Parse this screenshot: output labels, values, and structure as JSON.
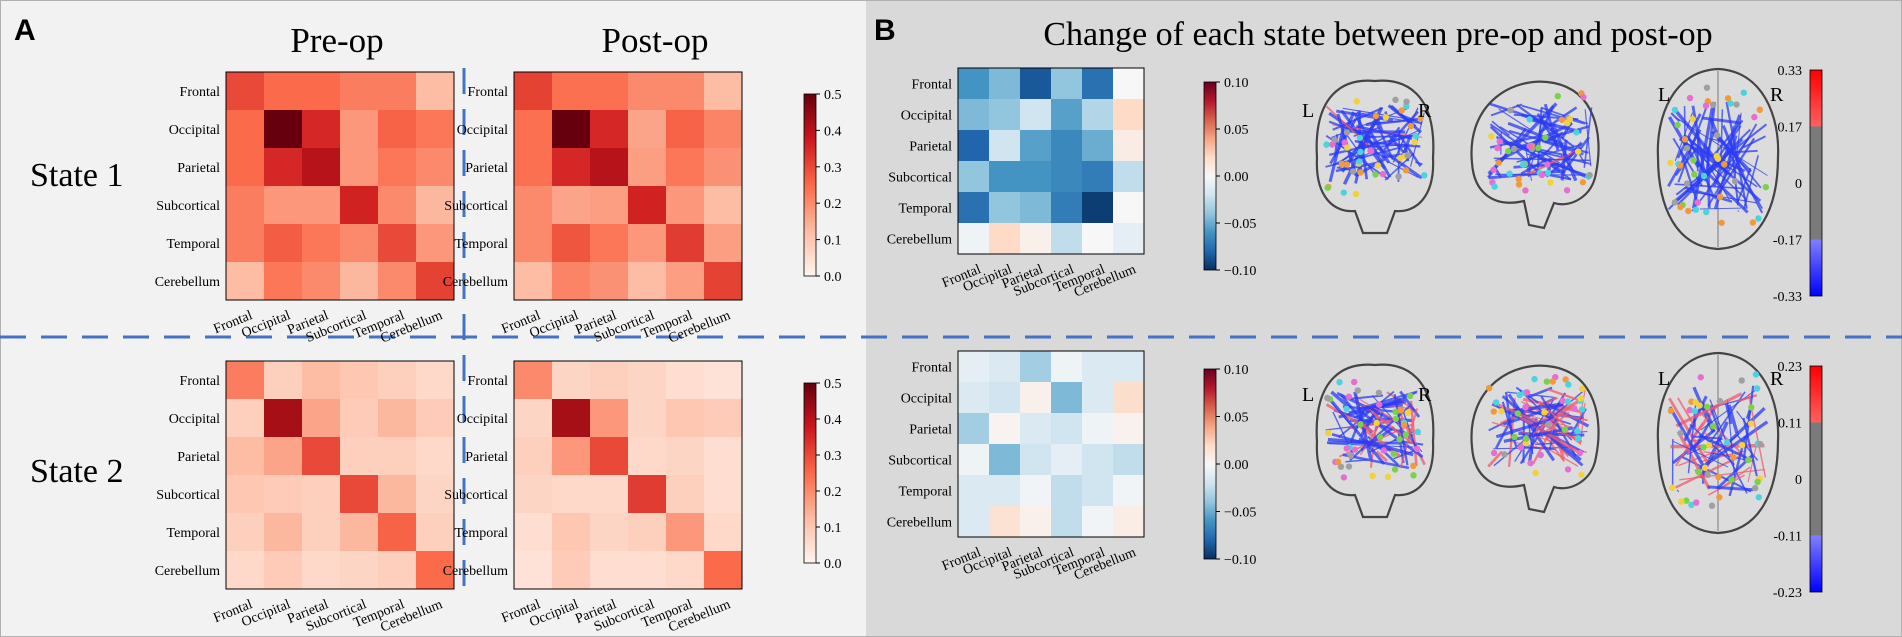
{
  "panels": {
    "a_letter": "A",
    "b_letter": "B",
    "a_col_titles": [
      "Pre-op",
      "Post-op"
    ],
    "a_row_titles": [
      "State 1",
      "State 2"
    ],
    "b_title": "Change of each state between pre-op and post-op"
  },
  "regions": [
    "Frontal",
    "Occipital",
    "Parietal",
    "Subcortical",
    "Temporal",
    "Cerebellum"
  ],
  "brain_labels": {
    "left": "L",
    "right": "R"
  },
  "colors": {
    "panel_a_bg": "#f2f2f2",
    "panel_b_bg": "#d9d9d9",
    "divider": "#4472c4",
    "reds": [
      "#fff5f0",
      "#fcbba1",
      "#fb6a4a",
      "#cb181d",
      "#67000d"
    ],
    "diverging": [
      "#053061",
      "#2166ac",
      "#4393c3",
      "#92c5de",
      "#d1e5f0",
      "#f7f7f7",
      "#fddbc7",
      "#f4a582",
      "#d6604d",
      "#b2182b",
      "#67001f"
    ],
    "edge_neg": "#2b3cf5",
    "edge_pos": "#f05a6e",
    "edge_mid": "#808080"
  },
  "chart_data": [
    {
      "id": "state1-pre",
      "type": "heatmap",
      "title": "Pre-op",
      "row_title": "State 1",
      "vmin": 0,
      "vmax": 0.5,
      "values": [
        [
          0.3,
          0.25,
          0.25,
          0.22,
          0.22,
          0.12
        ],
        [
          0.25,
          0.5,
          0.35,
          0.18,
          0.26,
          0.23
        ],
        [
          0.25,
          0.35,
          0.4,
          0.18,
          0.23,
          0.2
        ],
        [
          0.22,
          0.18,
          0.18,
          0.36,
          0.2,
          0.13
        ],
        [
          0.22,
          0.27,
          0.23,
          0.2,
          0.3,
          0.18
        ],
        [
          0.12,
          0.23,
          0.2,
          0.13,
          0.2,
          0.31
        ]
      ]
    },
    {
      "id": "state1-post",
      "type": "heatmap",
      "title": "Post-op",
      "row_title": "State 1",
      "vmin": 0,
      "vmax": 0.5,
      "values": [
        [
          0.31,
          0.24,
          0.24,
          0.2,
          0.2,
          0.12
        ],
        [
          0.24,
          0.5,
          0.35,
          0.16,
          0.26,
          0.21
        ],
        [
          0.24,
          0.35,
          0.4,
          0.17,
          0.23,
          0.19
        ],
        [
          0.2,
          0.16,
          0.17,
          0.36,
          0.18,
          0.12
        ],
        [
          0.2,
          0.28,
          0.23,
          0.18,
          0.32,
          0.17
        ],
        [
          0.12,
          0.21,
          0.19,
          0.12,
          0.17,
          0.31
        ]
      ],
      "colorbar": {
        "ticks": [
          "0.5",
          "0.4",
          "0.3",
          "0.2",
          "0.1",
          "0.0"
        ]
      }
    },
    {
      "id": "state2-pre",
      "type": "heatmap",
      "title": "Pre-op",
      "row_title": "State 2",
      "vmin": 0,
      "vmax": 0.5,
      "values": [
        [
          0.22,
          0.08,
          0.12,
          0.1,
          0.08,
          0.06
        ],
        [
          0.08,
          0.42,
          0.16,
          0.09,
          0.13,
          0.09
        ],
        [
          0.12,
          0.16,
          0.3,
          0.08,
          0.08,
          0.06
        ],
        [
          0.1,
          0.09,
          0.08,
          0.3,
          0.13,
          0.07
        ],
        [
          0.08,
          0.13,
          0.08,
          0.13,
          0.26,
          0.08
        ],
        [
          0.06,
          0.09,
          0.06,
          0.07,
          0.08,
          0.25
        ]
      ]
    },
    {
      "id": "state2-post",
      "type": "heatmap",
      "title": "Post-op",
      "row_title": "State 2",
      "vmin": 0,
      "vmax": 0.5,
      "values": [
        [
          0.2,
          0.07,
          0.08,
          0.07,
          0.05,
          0.04
        ],
        [
          0.07,
          0.42,
          0.18,
          0.07,
          0.1,
          0.09
        ],
        [
          0.08,
          0.18,
          0.3,
          0.06,
          0.07,
          0.05
        ],
        [
          0.07,
          0.06,
          0.06,
          0.32,
          0.08,
          0.05
        ],
        [
          0.05,
          0.1,
          0.07,
          0.08,
          0.18,
          0.06
        ],
        [
          0.04,
          0.09,
          0.05,
          0.05,
          0.06,
          0.25
        ]
      ],
      "colorbar": {
        "ticks": [
          "0.5",
          "0.4",
          "0.3",
          "0.2",
          "0.1",
          "0.0"
        ]
      }
    },
    {
      "id": "state1-diff",
      "type": "heatmap",
      "title": "Change of each state between pre-op and post-op",
      "row_title": "State 1",
      "vmin": -0.1,
      "vmax": 0.1,
      "values": [
        [
          -0.06,
          -0.045,
          -0.085,
          -0.04,
          -0.075,
          0.0
        ],
        [
          -0.045,
          -0.04,
          -0.02,
          -0.055,
          -0.03,
          0.02
        ],
        [
          -0.08,
          -0.02,
          -0.055,
          -0.065,
          -0.05,
          0.008
        ],
        [
          -0.04,
          -0.06,
          -0.06,
          -0.065,
          -0.07,
          -0.025
        ],
        [
          -0.075,
          -0.04,
          -0.045,
          -0.07,
          -0.095,
          0.0
        ],
        [
          -0.005,
          0.02,
          0.005,
          -0.025,
          0.0,
          -0.01
        ]
      ],
      "colorbar": {
        "ticks": [
          "0.10",
          "0.05",
          "0.00",
          "−0.05",
          "−0.10"
        ]
      }
    },
    {
      "id": "state2-diff",
      "type": "heatmap",
      "title": "Change of each state between pre-op and post-op",
      "row_title": "State 2",
      "vmin": -0.1,
      "vmax": 0.1,
      "values": [
        [
          -0.01,
          -0.015,
          -0.035,
          -0.005,
          -0.015,
          -0.015
        ],
        [
          -0.015,
          -0.02,
          0.005,
          -0.045,
          -0.015,
          0.018
        ],
        [
          -0.035,
          0.003,
          -0.015,
          -0.02,
          -0.005,
          0.004
        ],
        [
          -0.005,
          -0.045,
          -0.02,
          -0.01,
          -0.02,
          -0.025
        ],
        [
          -0.015,
          -0.015,
          -0.003,
          -0.025,
          -0.02,
          -0.003
        ],
        [
          -0.015,
          0.015,
          0.005,
          -0.025,
          -0.003,
          0.007
        ]
      ],
      "colorbar": {
        "ticks": [
          "0.10",
          "0.05",
          "0.00",
          "−0.05",
          "−0.10"
        ]
      }
    }
  ],
  "connectome_colorbars": [
    {
      "id": "state1-connectome",
      "ticks": [
        "0.33",
        "0.17",
        "0",
        "-0.17",
        "-0.33"
      ]
    },
    {
      "id": "state2-connectome",
      "ticks": [
        "0.23",
        "0.11",
        "0",
        "-0.11",
        "-0.23"
      ]
    }
  ]
}
